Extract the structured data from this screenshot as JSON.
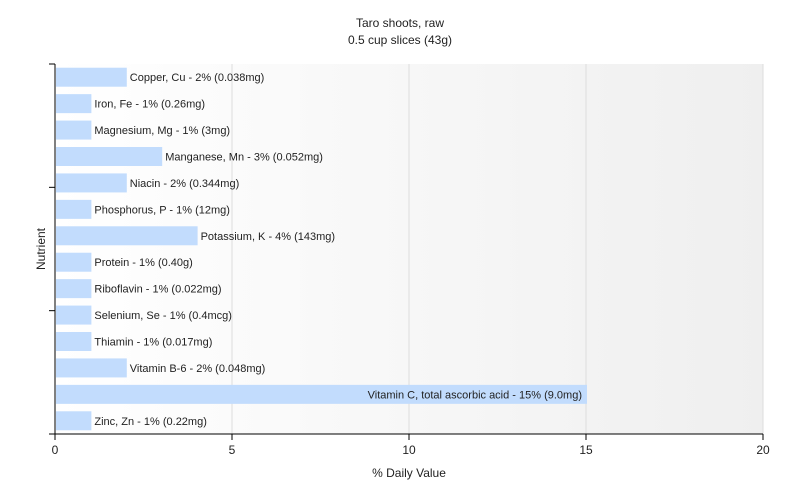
{
  "chart_data": {
    "type": "bar",
    "orientation": "horizontal",
    "title": "Taro shoots, raw",
    "subtitle": "0.5 cup slices (43g)",
    "xlabel": "% Daily Value",
    "ylabel": "Nutrient",
    "xlim": [
      0,
      20
    ],
    "xticks": [
      0,
      5,
      10,
      15,
      20
    ],
    "grid": true,
    "bar_color": "#c2dcfd",
    "categories": [
      "Copper, Cu",
      "Iron, Fe",
      "Magnesium, Mg",
      "Manganese, Mn",
      "Niacin",
      "Phosphorus, P",
      "Potassium, K",
      "Protein",
      "Riboflavin",
      "Selenium, Se",
      "Thiamin",
      "Vitamin B-6",
      "Vitamin C, total ascorbic acid",
      "Zinc, Zn"
    ],
    "values": [
      2,
      1,
      1,
      3,
      2,
      1,
      4,
      1,
      1,
      1,
      1,
      2,
      15,
      1
    ],
    "data_labels": [
      "Copper, Cu - 2% (0.038mg)",
      "Iron, Fe - 1% (0.26mg)",
      "Magnesium, Mg - 1% (3mg)",
      "Manganese, Mn - 3% (0.052mg)",
      "Niacin - 2% (0.344mg)",
      "Phosphorus, P - 1% (12mg)",
      "Potassium, K - 4% (143mg)",
      "Protein - 1% (0.40g)",
      "Riboflavin - 1% (0.022mg)",
      "Selenium, Se - 1% (0.4mcg)",
      "Thiamin - 1% (0.017mg)",
      "Vitamin B-6 - 2% (0.048mg)",
      "Vitamin C, total ascorbic acid - 15% (9.0mg)",
      "Zinc, Zn - 1% (0.22mg)"
    ]
  }
}
